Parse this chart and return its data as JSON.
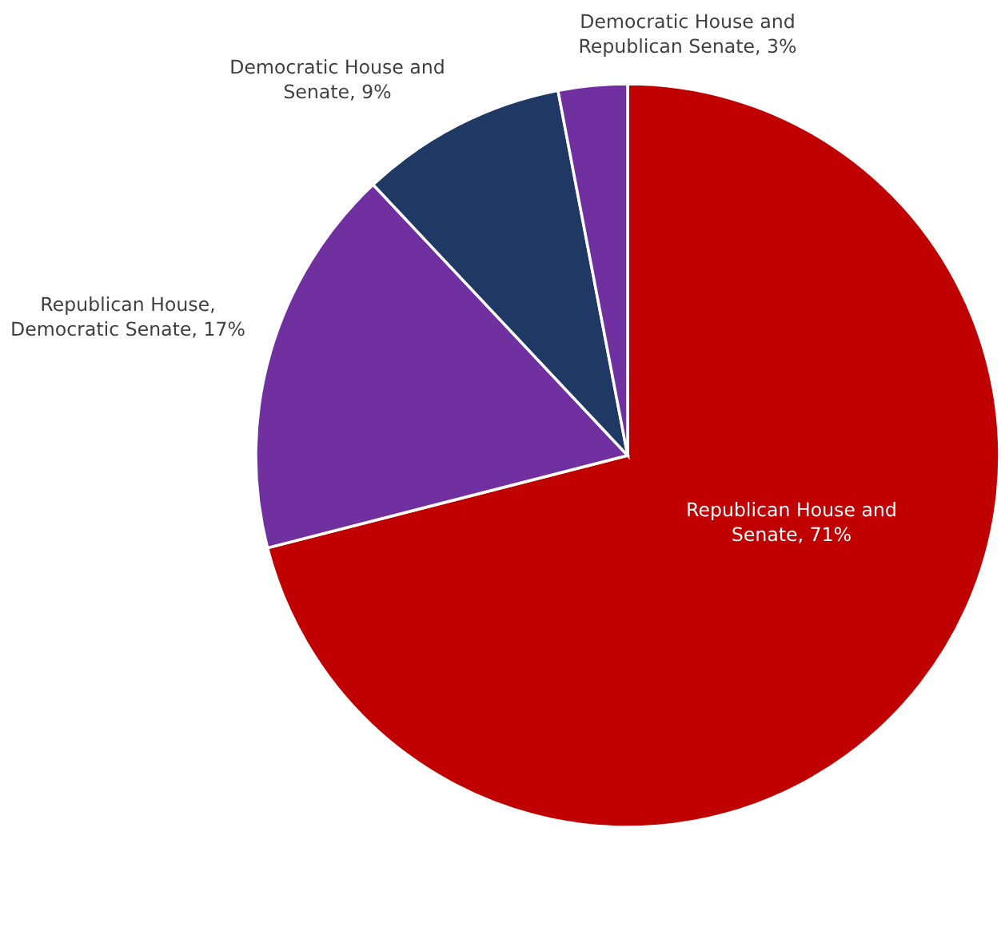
{
  "chart_data": {
    "type": "pie",
    "categories": [
      "Republican House and Senate",
      "Republican House, Democratic Senate",
      "Democratic House and Senate",
      "Democratic House and Republican Senate"
    ],
    "values": [
      71,
      17,
      9,
      3
    ],
    "colors": [
      "#c00000",
      "#7030a0",
      "#203864",
      "#7030a0"
    ],
    "value_labels": [
      "71%",
      "17%",
      "9%",
      "3%"
    ]
  }
}
